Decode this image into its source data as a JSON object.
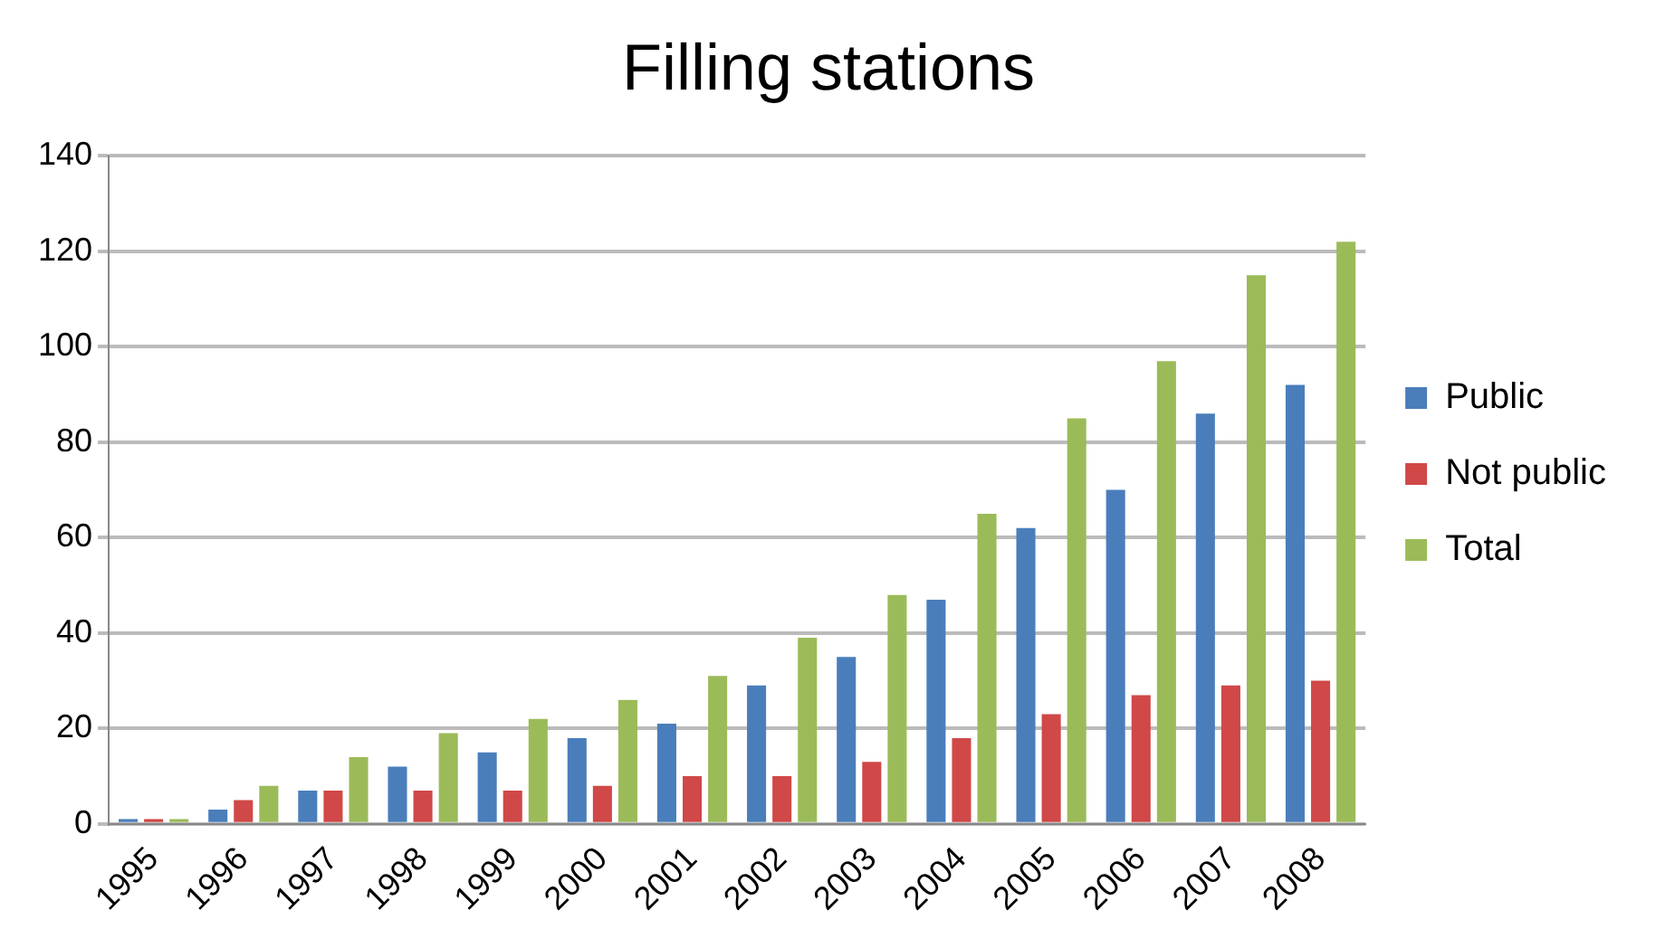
{
  "chart_data": {
    "type": "bar",
    "title": "Filling stations",
    "categories": [
      "1995",
      "1996",
      "1997",
      "1998",
      "1999",
      "2000",
      "2001",
      "2002",
      "2003",
      "2004",
      "2005",
      "2006",
      "2007",
      "2008"
    ],
    "series": [
      {
        "name": "Public",
        "color": "#4a7ebb",
        "values": [
          1,
          3,
          7,
          12,
          15,
          18,
          21,
          29,
          35,
          47,
          62,
          70,
          86,
          92
        ]
      },
      {
        "name": "Not public",
        "color": "#d04848",
        "values": [
          1,
          5,
          7,
          7,
          7,
          8,
          10,
          10,
          13,
          18,
          23,
          27,
          29,
          30
        ]
      },
      {
        "name": "Total",
        "color": "#9bbb59",
        "values": [
          1,
          8,
          14,
          19,
          22,
          26,
          31,
          39,
          48,
          65,
          85,
          97,
          115,
          122
        ]
      }
    ],
    "ylim": [
      0,
      140
    ],
    "yticks": [
      0,
      20,
      40,
      60,
      80,
      100,
      120,
      140
    ],
    "grid": "y",
    "legend": "right"
  }
}
